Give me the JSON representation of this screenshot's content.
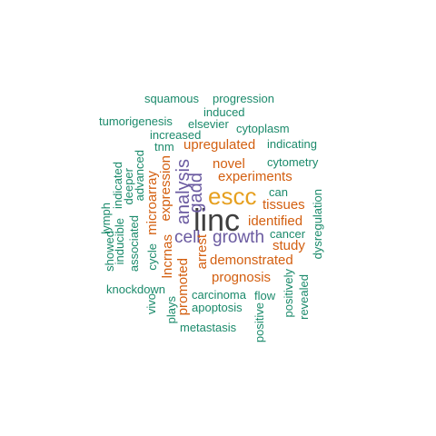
{
  "colors": {
    "largest": "#3f3f3f",
    "large": "#e6a020",
    "purple": "#6a5aa0",
    "orange": "#d35f10",
    "green": "#1b8a6b"
  },
  "words": [
    {
      "text": "linc",
      "color": "largest"
    },
    {
      "text": "escc",
      "color": "large"
    },
    {
      "text": "analysis",
      "color": "purple"
    },
    {
      "text": "gadd",
      "color": "purple"
    },
    {
      "text": "cell",
      "color": "purple"
    },
    {
      "text": "growth",
      "color": "purple"
    },
    {
      "text": "upregulated",
      "color": "orange"
    },
    {
      "text": "novel",
      "color": "orange"
    },
    {
      "text": "experiments",
      "color": "orange"
    },
    {
      "text": "tissues",
      "color": "orange"
    },
    {
      "text": "identified",
      "color": "orange"
    },
    {
      "text": "study",
      "color": "orange"
    },
    {
      "text": "demonstrated",
      "color": "orange"
    },
    {
      "text": "prognosis",
      "color": "orange"
    },
    {
      "text": "expression",
      "color": "orange"
    },
    {
      "text": "microarray",
      "color": "orange"
    },
    {
      "text": "lncrnas",
      "color": "orange"
    },
    {
      "text": "arrest",
      "color": "orange"
    },
    {
      "text": "promoted",
      "color": "orange"
    },
    {
      "text": "squamous",
      "color": "green"
    },
    {
      "text": "progression",
      "color": "green"
    },
    {
      "text": "induced",
      "color": "green"
    },
    {
      "text": "tumorigenesis",
      "color": "green"
    },
    {
      "text": "elsevier",
      "color": "green"
    },
    {
      "text": "cytoplasm",
      "color": "green"
    },
    {
      "text": "increased",
      "color": "green"
    },
    {
      "text": "tnm",
      "color": "green"
    },
    {
      "text": "indicating",
      "color": "green"
    },
    {
      "text": "cytometry",
      "color": "green"
    },
    {
      "text": "can",
      "color": "green"
    },
    {
      "text": "cancer",
      "color": "green"
    },
    {
      "text": "carcinoma",
      "color": "green"
    },
    {
      "text": "flow",
      "color": "green"
    },
    {
      "text": "apoptosis",
      "color": "green"
    },
    {
      "text": "knockdown",
      "color": "green"
    },
    {
      "text": "metastasis",
      "color": "green"
    },
    {
      "text": "showed",
      "color": "green"
    },
    {
      "text": "lymph",
      "color": "green"
    },
    {
      "text": "inducible",
      "color": "green"
    },
    {
      "text": "indicated",
      "color": "green"
    },
    {
      "text": "deeper",
      "color": "green"
    },
    {
      "text": "associated",
      "color": "green"
    },
    {
      "text": "advanced",
      "color": "green"
    },
    {
      "text": "cycle",
      "color": "green"
    },
    {
      "text": "vivo",
      "color": "green"
    },
    {
      "text": "plays",
      "color": "green"
    },
    {
      "text": "positive",
      "color": "green"
    },
    {
      "text": "positively",
      "color": "green"
    },
    {
      "text": "revealed",
      "color": "green"
    },
    {
      "text": "dysregulation",
      "color": "green"
    }
  ]
}
